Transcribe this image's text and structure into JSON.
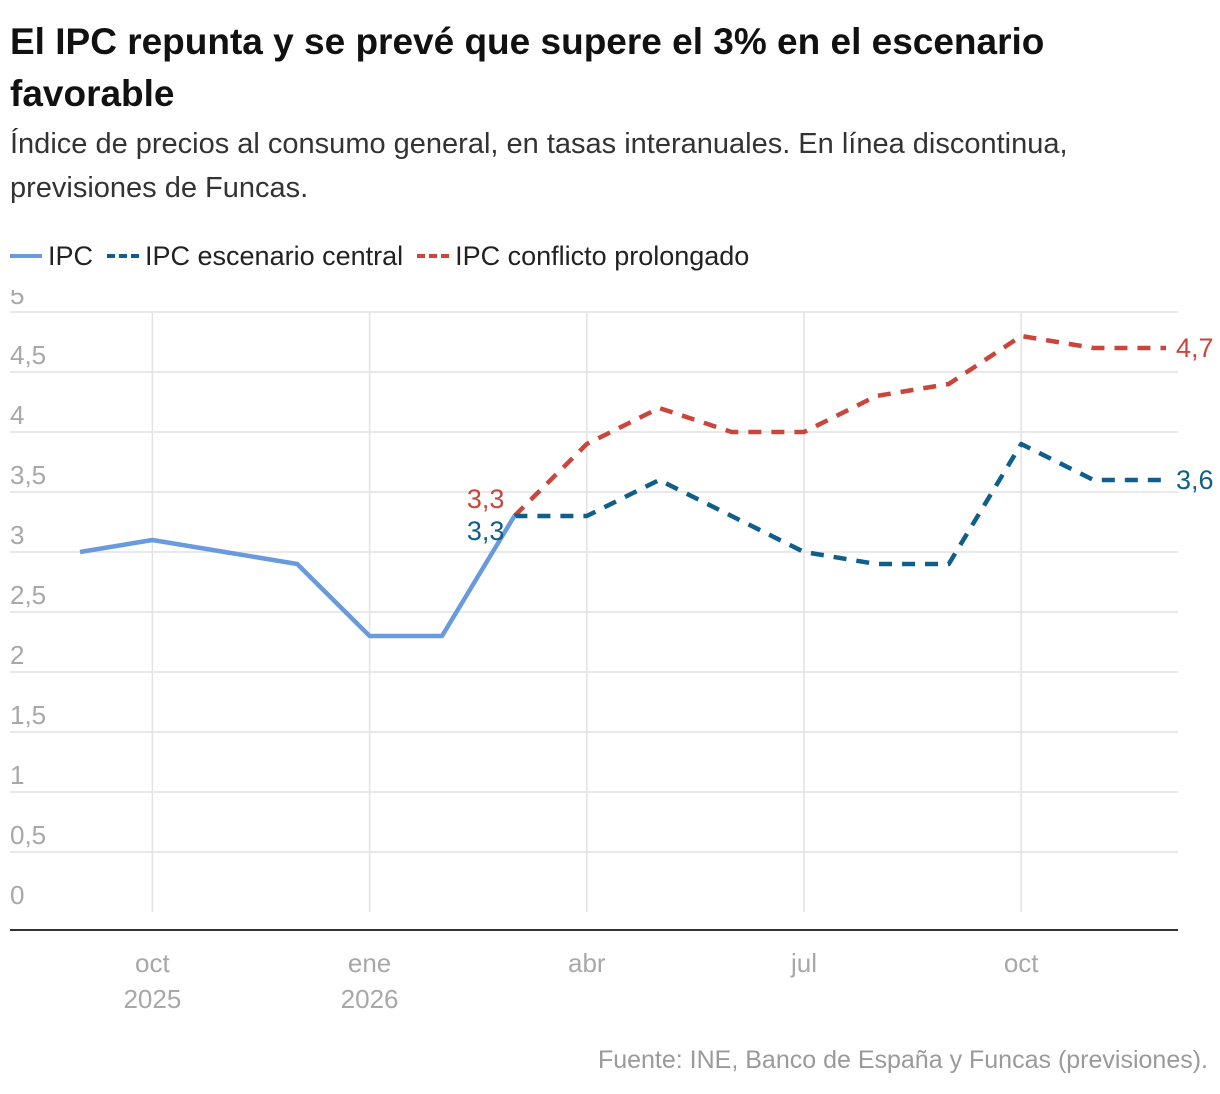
{
  "title": "El IPC repunta y se prevé que supere el 3% en el escenario favorable",
  "subtitle": "Índice de precios al consumo general, en tasas interanuales. En línea discontinua, previsiones de Funcas.",
  "source": "Fuente: INE, Banco de España y Funcas (previsiones).",
  "colors": {
    "ipc": "#6a9ade",
    "central": "#0f5f8a",
    "conflict": "#c9463d",
    "grid": "#e2e2e2",
    "axis": "#333333",
    "tick_text": "#a8a8a8"
  },
  "chart_data": {
    "type": "line",
    "x": [
      "2025-09",
      "2025-10",
      "2025-11",
      "2025-12",
      "2026-01",
      "2026-02",
      "2026-03",
      "2026-04",
      "2026-05",
      "2026-06",
      "2026-07",
      "2026-08",
      "2026-09",
      "2026-10",
      "2026-11",
      "2026-12"
    ],
    "ylim": [
      0,
      5
    ],
    "yticks": [
      "0",
      "0,5",
      "1",
      "1,5",
      "2",
      "2,5",
      "3",
      "3,5",
      "4",
      "4,5",
      "5"
    ],
    "xticks": [
      {
        "x": "2025-10",
        "label": "oct",
        "sublabel": "2025"
      },
      {
        "x": "2026-01",
        "label": "ene",
        "sublabel": "2026"
      },
      {
        "x": "2026-04",
        "label": "abr",
        "sublabel": ""
      },
      {
        "x": "2026-07",
        "label": "jul",
        "sublabel": ""
      },
      {
        "x": "2026-10",
        "label": "oct",
        "sublabel": ""
      }
    ],
    "grid": true,
    "legend_position": "top-left",
    "series": [
      {
        "name": "IPC",
        "style": "solid",
        "values": [
          3.0,
          3.1,
          3.0,
          2.9,
          2.3,
          2.3,
          3.3,
          null,
          null,
          null,
          null,
          null,
          null,
          null,
          null,
          null
        ]
      },
      {
        "name": "IPC escenario central",
        "style": "dashed",
        "values": [
          null,
          null,
          null,
          null,
          null,
          null,
          3.3,
          3.3,
          3.6,
          3.3,
          3.0,
          2.9,
          2.9,
          3.9,
          3.6,
          3.6
        ]
      },
      {
        "name": "IPC conflicto prolongado",
        "style": "dashed",
        "values": [
          null,
          null,
          null,
          null,
          null,
          null,
          3.3,
          3.9,
          4.2,
          4.0,
          4.0,
          4.3,
          4.4,
          4.8,
          4.7,
          4.7
        ]
      }
    ],
    "annotations": [
      {
        "series": "IPC conflicto prolongado",
        "x": "2026-03",
        "text": "3,3"
      },
      {
        "series": "IPC escenario central",
        "x": "2026-03",
        "text": "3,3"
      },
      {
        "series": "IPC conflicto prolongado",
        "x": "2026-12",
        "text": "4,7"
      },
      {
        "series": "IPC escenario central",
        "x": "2026-12",
        "text": "3,6"
      }
    ]
  }
}
